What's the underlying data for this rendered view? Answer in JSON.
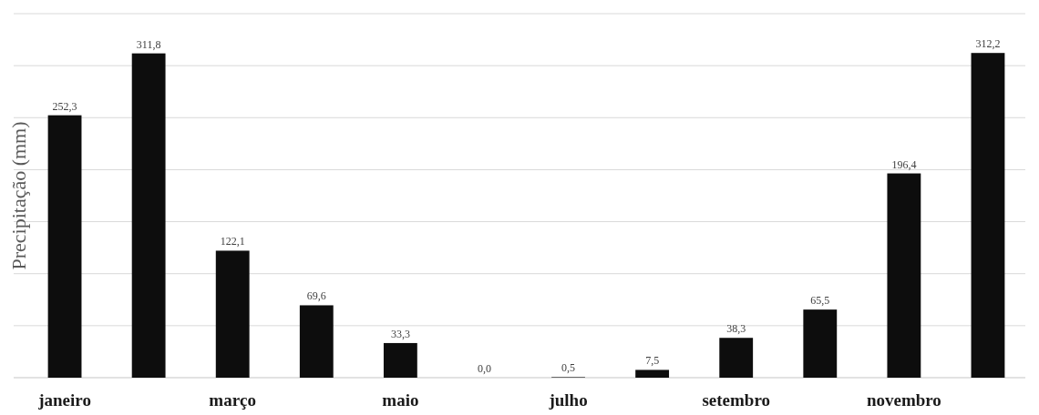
{
  "chart_data": {
    "type": "bar",
    "ylabel": "Precipitação (mm)",
    "categories": [
      "janeiro",
      null,
      "março",
      null,
      "maio",
      null,
      "julho",
      null,
      "setembro",
      null,
      "novembro",
      null
    ],
    "values": [
      252.3,
      311.8,
      122.1,
      69.6,
      33.3,
      0.0,
      0.5,
      7.5,
      38.3,
      65.5,
      196.4,
      312.2
    ],
    "value_labels": [
      "252,3",
      "311,8",
      "122,1",
      "69,6",
      "33,3",
      "0,0",
      "0,5",
      "7,5",
      "38,3",
      "65,5",
      "196,4",
      "312,2"
    ],
    "color": "#0d0d0d",
    "ylim": [
      0,
      350
    ],
    "yticks": [
      {
        "value": 0,
        "label": null
      },
      {
        "value": 50,
        "label": null
      },
      {
        "value": 100,
        "label": null
      },
      {
        "value": 150,
        "label": null
      },
      {
        "value": 200,
        "label": null
      },
      {
        "value": 250,
        "label": null
      },
      {
        "value": 300,
        "label": null
      },
      {
        "value": 350,
        "label": null
      }
    ],
    "grid": "y",
    "tick_labels": "x"
  }
}
